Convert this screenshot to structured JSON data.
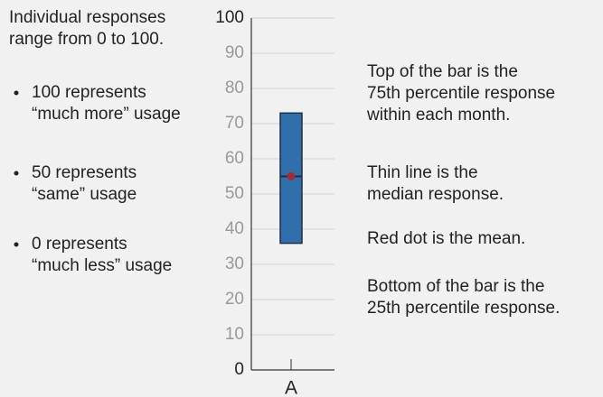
{
  "chart_data": {
    "type": "box",
    "categories": [
      "A"
    ],
    "boxes": [
      {
        "q1": 36,
        "median": 55,
        "mean": 55,
        "q3": 73
      }
    ],
    "color": "#2f6fab",
    "mean_color": "#b0272d",
    "ylim": [
      0,
      100
    ],
    "yticks": [
      0,
      10,
      20,
      30,
      40,
      50,
      60,
      70,
      80,
      90,
      100
    ],
    "grid": true,
    "left_notes": {
      "intro": [
        "Individual responses",
        "range from 0 to 100."
      ],
      "bullets": [
        [
          "100 represents",
          "“much more” usage"
        ],
        [
          "50 represents",
          "“same” usage"
        ],
        [
          "0 represents",
          "“much less” usage"
        ]
      ]
    },
    "right_notes": [
      [
        "Top of the bar is the",
        "75th percentile response",
        "within each month."
      ],
      [
        "Thin line is the",
        "median response."
      ],
      [
        "Red dot is the mean."
      ],
      [
        "Bottom of the bar is the",
        "25th percentile response."
      ]
    ]
  }
}
